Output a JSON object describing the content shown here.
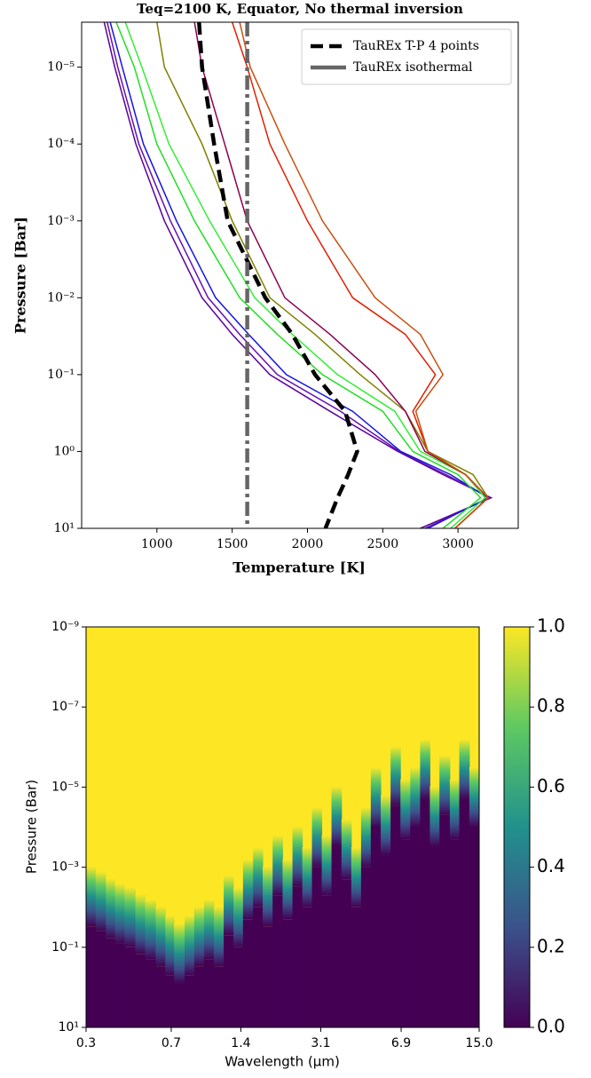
{
  "chart_data": [
    {
      "type": "line",
      "title": "Teq=2100 K, Equator, No thermal inversion",
      "xlabel": "Temperature [K]",
      "ylabel": "Pressure [Bar]",
      "xlim": [
        500,
        3400
      ],
      "xticks": [
        1000,
        1500,
        2000,
        2500,
        3000
      ],
      "ylim": [
        10,
        2.6e-06
      ],
      "ylog": true,
      "yticks": [
        {
          "value": 10,
          "label": "10¹"
        },
        {
          "value": 1,
          "label": "10⁰"
        },
        {
          "value": 0.1,
          "label": "10⁻¹"
        },
        {
          "value": 0.01,
          "label": "10⁻²"
        },
        {
          "value": 0.001,
          "label": "10⁻³"
        },
        {
          "value": 0.0001,
          "label": "10⁻⁴"
        },
        {
          "value": 1e-05,
          "label": "10⁻⁵"
        }
      ],
      "legend": "upper right",
      "pressure": [
        2.6e-06,
        1e-05,
        0.0001,
        0.001,
        0.01,
        0.03,
        0.1,
        0.3,
        1,
        2,
        4,
        10
      ],
      "series": [
        {
          "color": "#5a009a",
          "values": [
            650,
            720,
            860,
            1050,
            1300,
            1500,
            1750,
            2150,
            2600,
            2900,
            3220,
            2750
          ]
        },
        {
          "color": "#6a10b0",
          "values": [
            670,
            740,
            880,
            1090,
            1340,
            1550,
            1800,
            2220,
            2610,
            2920,
            3210,
            2780
          ]
        },
        {
          "color": "#1515e0",
          "values": [
            690,
            770,
            910,
            1130,
            1390,
            1610,
            1860,
            2300,
            2620,
            2950,
            3200,
            2800
          ]
        },
        {
          "color": "#22dd22",
          "values": [
            730,
            850,
            1000,
            1250,
            1550,
            1800,
            2100,
            2500,
            2700,
            3000,
            3150,
            2900
          ]
        },
        {
          "color": "#33ee33",
          "values": [
            790,
            900,
            1080,
            1350,
            1650,
            1900,
            2200,
            2580,
            2750,
            3050,
            3180,
            2950
          ]
        },
        {
          "color": "#808000",
          "values": [
            1000,
            1050,
            1300,
            1500,
            1750,
            2050,
            2350,
            2650,
            2800,
            3100,
            3200,
            2980
          ]
        },
        {
          "color": "#8b0050",
          "values": [
            1250,
            1300,
            1450,
            1600,
            1850,
            2150,
            2450,
            2650,
            2780,
            3050,
            3200,
            2980
          ]
        },
        {
          "color": "#e02000",
          "values": [
            1500,
            1600,
            1750,
            2000,
            2300,
            2650,
            2850,
            2700,
            2800,
            3050,
            3200,
            2980
          ]
        },
        {
          "color": "#c85010",
          "values": [
            1550,
            1620,
            1850,
            2100,
            2450,
            2750,
            2900,
            2720,
            2800,
            3050,
            3200,
            2980
          ]
        },
        {
          "name": "TauREx T-P 4 points",
          "color": "#000000",
          "style": "dashed",
          "values": [
            1280,
            1300,
            1380,
            1470,
            1720,
            1900,
            2050,
            2250,
            2330,
            2270,
            2200,
            2120
          ]
        },
        {
          "name": "TauREx isothermal",
          "color": "#666666",
          "style": "dashdot",
          "values": [
            1600,
            1600,
            1600,
            1600,
            1600,
            1600,
            1600,
            1600,
            1600,
            1600,
            1600,
            1600
          ]
        }
      ]
    },
    {
      "type": "heatmap",
      "xlabel": "Wavelength (μm)",
      "ylabel": "Pressure (Bar)",
      "xlim": [
        0.3,
        15
      ],
      "xlog": true,
      "xticks": [
        0.3,
        0.7,
        1.4,
        3.1,
        6.9,
        {
          "value": 15,
          "label": "15.0"
        }
      ],
      "ylim": [
        10,
        1e-09
      ],
      "ylog": true,
      "yticks": [
        {
          "value": 10,
          "label": "10¹"
        },
        {
          "value": 0.1,
          "label": "10⁻¹"
        },
        {
          "value": 0.001,
          "label": "10⁻³"
        },
        {
          "value": 1e-05,
          "label": "10⁻⁵"
        },
        {
          "value": 1e-07,
          "label": "10⁻⁷"
        },
        {
          "value": 1e-09,
          "label": "10⁻⁹"
        }
      ],
      "colorbar": {
        "lim": [
          0,
          1
        ],
        "ticks": [
          {
            "value": 0,
            "label": "0.0"
          },
          0.2,
          0.4,
          0.6,
          0.8,
          {
            "value": 1,
            "label": "1.0"
          }
        ]
      },
      "wavelengths": [
        0.3,
        0.33,
        0.365,
        0.4,
        0.44,
        0.49,
        0.54,
        0.6,
        0.66,
        0.72,
        0.8,
        0.88,
        0.97,
        1.07,
        1.18,
        1.3,
        1.43,
        1.58,
        1.74,
        1.92,
        2.12,
        2.34,
        2.58,
        2.84,
        3.13,
        3.45,
        3.81,
        4.2,
        4.63,
        5.1,
        5.63,
        6.21,
        6.85,
        7.55,
        8.33,
        9.18,
        10.1,
        11.2,
        12.3,
        13.6
      ],
      "transition_pressure": [
        0.03,
        0.04,
        0.06,
        0.08,
        0.1,
        0.15,
        0.2,
        0.3,
        0.5,
        0.8,
        0.5,
        0.3,
        0.2,
        0.3,
        0.05,
        0.1,
        0.02,
        0.01,
        0.03,
        0.005,
        0.02,
        0.003,
        0.01,
        0.001,
        0.005,
        0.0003,
        0.002,
        0.01,
        0.001,
        0.0001,
        0.0005,
        3e-05,
        0.0002,
        0.0001,
        2e-05,
        0.0003,
        5e-05,
        0.0002,
        2e-05,
        0.0001
      ]
    }
  ]
}
